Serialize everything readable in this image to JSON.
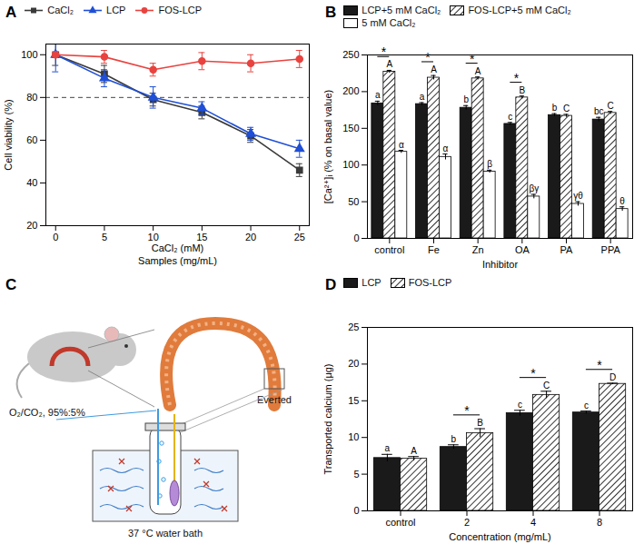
{
  "chart_data": [
    {
      "panel": "A",
      "type": "line",
      "x_label": [
        "CaCl₂ (mM)",
        "Samples (mg/mL)"
      ],
      "y_label": "Cell viability (%)",
      "x": [
        0,
        5,
        10,
        15,
        20,
        25
      ],
      "xlim": [
        -1,
        26
      ],
      "xticks": [
        0,
        5,
        10,
        15,
        20,
        25
      ],
      "ylim": [
        20,
        105
      ],
      "yticks": [
        20,
        40,
        60,
        80,
        100
      ],
      "reference_line": 80,
      "legend": "top",
      "series": [
        {
          "name": "CaCl₂",
          "color": "#3a3a3a",
          "marker": "square",
          "values": [
            100,
            91,
            79,
            73,
            62,
            46
          ],
          "errors": [
            5,
            4,
            3,
            3,
            3,
            3
          ]
        },
        {
          "name": "LCP",
          "color": "#1f4fd6",
          "marker": "triangle",
          "values": [
            100,
            89,
            80,
            75,
            63,
            56
          ],
          "errors": [
            8,
            4,
            5,
            3,
            3,
            4
          ]
        },
        {
          "name": "FOS-LCP",
          "color": "#e8433f",
          "marker": "circle",
          "values": [
            100,
            99,
            93,
            97,
            96,
            98
          ],
          "errors": [
            1,
            3,
            3,
            4,
            4,
            4
          ]
        }
      ]
    },
    {
      "panel": "B",
      "type": "bar",
      "x_label": "Inhibitor",
      "y_label": "[Ca²⁺]ᵢ (% on basal value)",
      "categories": [
        "control",
        "Fe",
        "Zn",
        "OA",
        "PA",
        "PPA"
      ],
      "ylim": [
        0,
        250
      ],
      "yticks": [
        0,
        50,
        100,
        150,
        200,
        250
      ],
      "legend": "top",
      "significance": [
        "*",
        "*",
        "*",
        "*",
        null,
        null
      ],
      "series": [
        {
          "name": "LCP+5 mM CaCl₂",
          "color": "#1a1a1a",
          "values": [
            184,
            183,
            178,
            156,
            168,
            162
          ],
          "errors": [
            3,
            2,
            3,
            2,
            2,
            3
          ],
          "letters": [
            "a",
            "a",
            "b",
            "c",
            "b",
            "bc"
          ]
        },
        {
          "name": "FOS-LCP+5 mM CaCl₂",
          "color": "#1a1a1a",
          "line_style": "hatched",
          "values": [
            227,
            219,
            218,
            192,
            167,
            171
          ],
          "errors": [
            2,
            3,
            2,
            2,
            2,
            2
          ],
          "letters": [
            "A",
            "A",
            "A",
            "B",
            "C",
            "C"
          ]
        },
        {
          "name": "5 mM CaCl₂",
          "color": "#ffffff",
          "values": [
            118,
            111,
            91,
            57,
            47,
            40
          ],
          "errors": [
            2,
            4,
            2,
            3,
            3,
            3
          ],
          "letters": [
            "α",
            "α",
            "β",
            "βγ",
            "γθ",
            "θ"
          ]
        }
      ]
    },
    {
      "panel": "D",
      "type": "bar",
      "x_label": "Concentration (mg/mL)",
      "y_label": "Transported calcium (μg)",
      "categories": [
        "control",
        "2",
        "4",
        "8"
      ],
      "ylim": [
        0,
        25
      ],
      "yticks": [
        0,
        5,
        10,
        15,
        20,
        25
      ],
      "legend": "top",
      "significance": [
        null,
        "*",
        "*",
        "*"
      ],
      "series": [
        {
          "name": "LCP",
          "color": "#1a1a1a",
          "values": [
            7.2,
            8.7,
            13.3,
            13.4
          ],
          "errors": [
            0.5,
            0.3,
            0.4,
            0.2
          ],
          "letters": [
            "a",
            "b",
            "c",
            "c"
          ]
        },
        {
          "name": "FOS-LCP",
          "color": "#1a1a1a",
          "line_style": "hatched",
          "values": [
            7.1,
            10.6,
            15.8,
            17.3
          ],
          "errors": [
            0.3,
            0.6,
            0.5,
            0.1
          ],
          "letters": [
            "A",
            "B",
            "C",
            "D"
          ]
        }
      ]
    }
  ],
  "diagram": {
    "panel": "C",
    "everted": "Everted",
    "gas": "O₂/CO₂, 95%:5%",
    "bath": "37 °C water bath"
  }
}
